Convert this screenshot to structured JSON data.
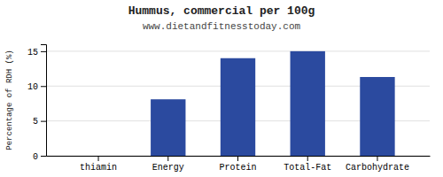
{
  "chart_data": {
    "type": "bar",
    "title": "Hummus, commercial per 100g",
    "subtitle": "www.dietandfitnesstoday.com",
    "categories": [
      "thiamin",
      "Energy",
      "Protein",
      "Total-Fat",
      "Carbohydrate"
    ],
    "values": [
      0,
      8.1,
      14.0,
      15.0,
      11.3
    ],
    "color": "#2b4a9f",
    "ylabel": "Percentage of RDH (%)",
    "ylim": [
      0,
      16
    ],
    "yticks": [
      0,
      5,
      10,
      15
    ],
    "grid": true
  }
}
